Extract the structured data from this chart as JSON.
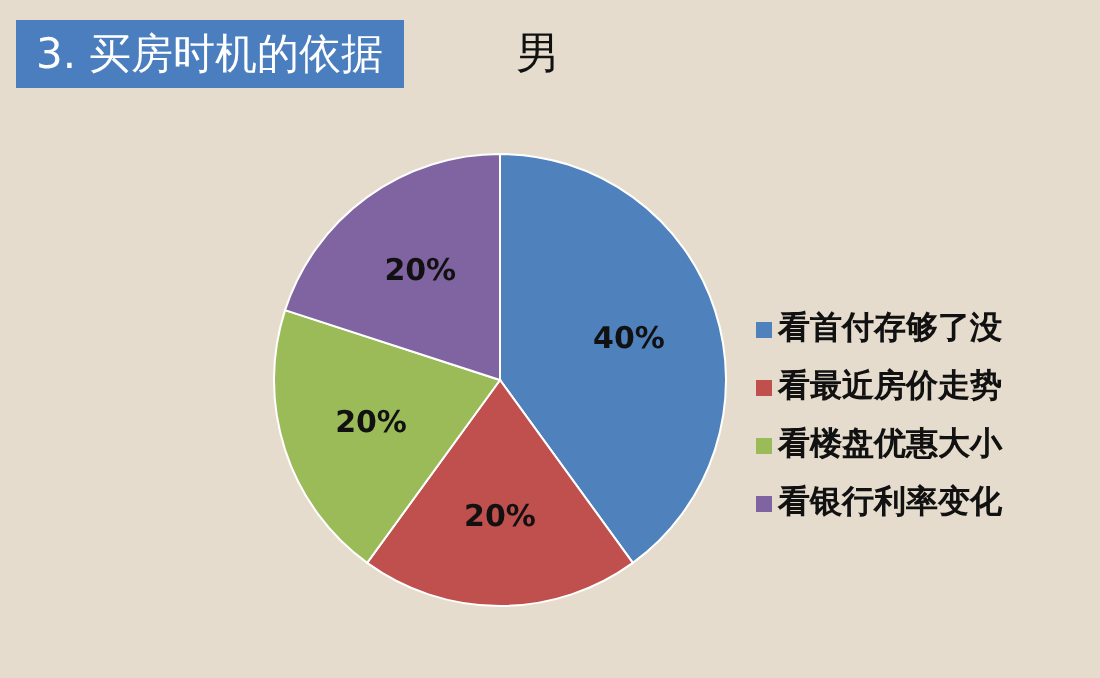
{
  "chart_data": {
    "type": "pie",
    "title": "3. 买房时机的依据",
    "subtitle": "男",
    "categories": [
      "看首付存够了没",
      "看最近房价走势",
      "看楼盘优惠大小",
      "看银行利率变化"
    ],
    "values": [
      40,
      20,
      20,
      20
    ],
    "colors": [
      "#4f81bd",
      "#c0504d",
      "#9bbb59",
      "#8064a2"
    ],
    "value_labels": [
      "40%",
      "20%",
      "20%",
      "20%"
    ],
    "legend": "right"
  }
}
